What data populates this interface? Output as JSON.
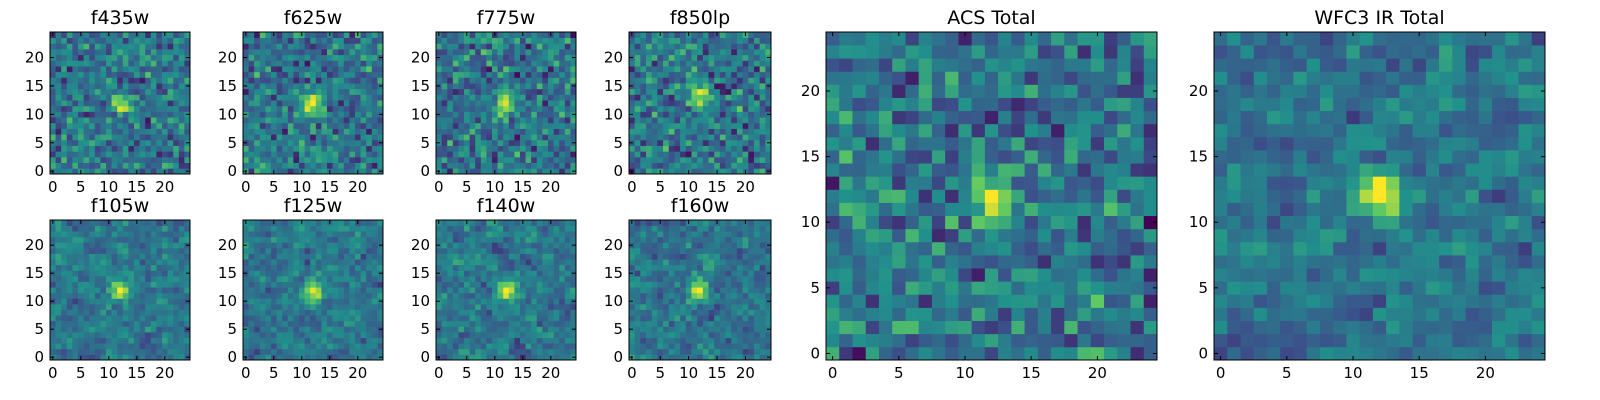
{
  "figure": {
    "colormap": [
      "#440154",
      "#3b528b",
      "#21918c",
      "#5ec962",
      "#fde725"
    ]
  },
  "chart_data": [
    {
      "type": "heatmap",
      "title": "f435w",
      "xlim": [
        0,
        25
      ],
      "ylim": [
        0,
        25
      ],
      "xticks": [
        0,
        5,
        10,
        15,
        20
      ],
      "yticks": [
        0,
        5,
        10,
        15,
        20
      ],
      "grid": false,
      "source_peak": [
        12,
        12
      ],
      "noise_seed": 11
    },
    {
      "type": "heatmap",
      "title": "f625w",
      "xlim": [
        0,
        25
      ],
      "ylim": [
        0,
        25
      ],
      "xticks": [
        0,
        5,
        10,
        15,
        20
      ],
      "yticks": [
        0,
        5,
        10,
        15,
        20
      ],
      "grid": false,
      "source_peak": [
        12,
        12
      ],
      "noise_seed": 23
    },
    {
      "type": "heatmap",
      "title": "f775w",
      "xlim": [
        0,
        25
      ],
      "ylim": [
        0,
        25
      ],
      "xticks": [
        0,
        5,
        10,
        15,
        20
      ],
      "yticks": [
        0,
        5,
        10,
        15,
        20
      ],
      "grid": false,
      "source_peak": [
        12,
        12
      ],
      "noise_seed": 37
    },
    {
      "type": "heatmap",
      "title": "f850lp",
      "xlim": [
        0,
        25
      ],
      "ylim": [
        0,
        25
      ],
      "xticks": [
        0,
        5,
        10,
        15,
        20
      ],
      "yticks": [
        0,
        5,
        10,
        15,
        20
      ],
      "grid": false,
      "source_peak": [
        12,
        13
      ],
      "noise_seed": 41
    },
    {
      "type": "heatmap",
      "title": "f105w",
      "xlim": [
        0,
        25
      ],
      "ylim": [
        0,
        25
      ],
      "xticks": [
        0,
        5,
        10,
        15,
        20
      ],
      "yticks": [
        0,
        5,
        10,
        15,
        20
      ],
      "grid": false,
      "source_peak": [
        12,
        12
      ],
      "noise_seed": 53
    },
    {
      "type": "heatmap",
      "title": "f125w",
      "xlim": [
        0,
        25
      ],
      "ylim": [
        0,
        25
      ],
      "xticks": [
        0,
        5,
        10,
        15,
        20
      ],
      "yticks": [
        0,
        5,
        10,
        15,
        20
      ],
      "grid": false,
      "source_peak": [
        12,
        12
      ],
      "noise_seed": 67
    },
    {
      "type": "heatmap",
      "title": "f140w",
      "xlim": [
        0,
        25
      ],
      "ylim": [
        0,
        25
      ],
      "xticks": [
        0,
        5,
        10,
        15,
        20
      ],
      "yticks": [
        0,
        5,
        10,
        15,
        20
      ],
      "grid": false,
      "source_peak": [
        12,
        12
      ],
      "noise_seed": 71
    },
    {
      "type": "heatmap",
      "title": "f160w",
      "xlim": [
        0,
        25
      ],
      "ylim": [
        0,
        25
      ],
      "xticks": [
        0,
        5,
        10,
        15,
        20
      ],
      "yticks": [
        0,
        5,
        10,
        15,
        20
      ],
      "grid": false,
      "source_peak": [
        12,
        12
      ],
      "noise_seed": 83
    },
    {
      "type": "heatmap",
      "title": "ACS Total",
      "xlim": [
        0,
        25
      ],
      "ylim": [
        0,
        25
      ],
      "xticks": [
        0,
        5,
        10,
        15,
        20
      ],
      "yticks": [
        0,
        5,
        10,
        15,
        20
      ],
      "grid": false,
      "source_peak": [
        12,
        12
      ],
      "noise_seed": 97
    },
    {
      "type": "heatmap",
      "title": "WFC3 IR Total",
      "xlim": [
        0,
        25
      ],
      "ylim": [
        0,
        25
      ],
      "xticks": [
        0,
        5,
        10,
        15,
        20
      ],
      "yticks": [
        0,
        5,
        10,
        15,
        20
      ],
      "grid": false,
      "source_peak": [
        12,
        12
      ],
      "noise_seed": 101
    }
  ]
}
